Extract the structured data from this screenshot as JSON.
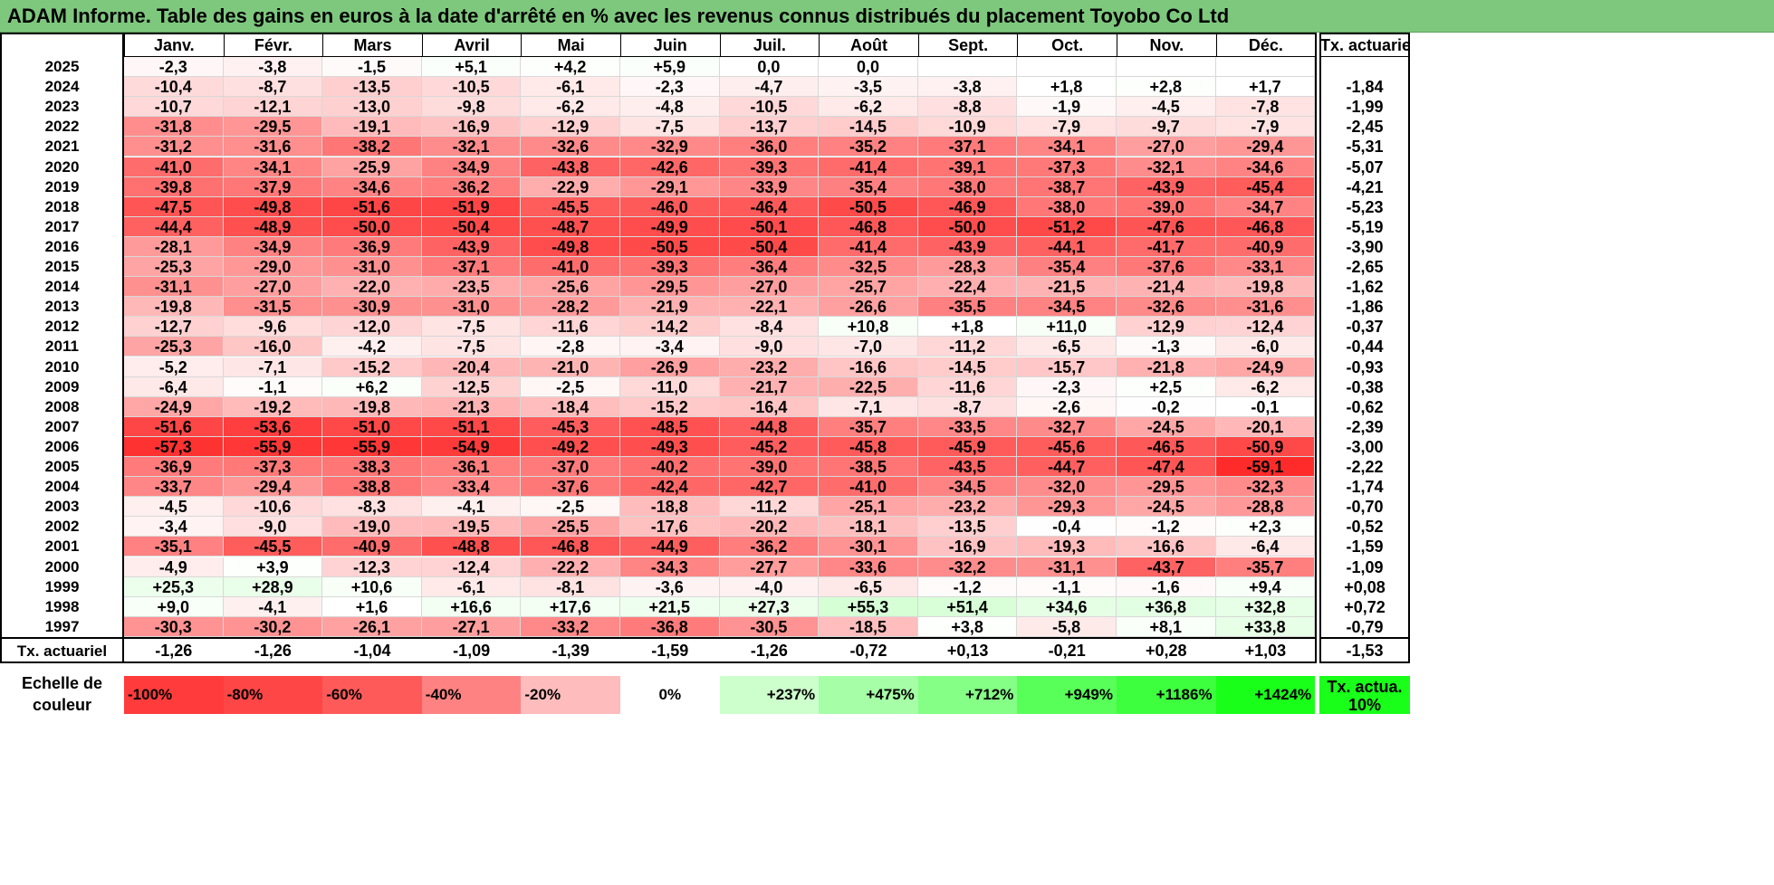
{
  "title": "ADAM Informe. Table des gains en euros à la date d'arrêté en % avec les revenus connus distribués du placement Toyobo Co Ltd",
  "chart_data": {
    "type": "heatmap",
    "title": "ADAM Informe. Table des gains en euros à la date d'arrêté en % avec les revenus connus distribués du placement Toyobo Co Ltd",
    "columns": [
      "Janv.",
      "Févr.",
      "Mars",
      "Avril",
      "Mai",
      "Juin",
      "Juil.",
      "Août",
      "Sept.",
      "Oct.",
      "Nov.",
      "Déc."
    ],
    "annual_header": "Tx. actuariel",
    "rows": [
      {
        "year": "2025",
        "values": [
          "-2,3",
          "-3,8",
          "-1,5",
          "+5,1",
          "+4,2",
          "+5,9",
          "0,0",
          "0,0",
          "",
          "",
          "",
          ""
        ],
        "annual": ""
      },
      {
        "year": "2024",
        "values": [
          "-10,4",
          "-8,7",
          "-13,5",
          "-10,5",
          "-6,1",
          "-2,3",
          "-4,7",
          "-3,5",
          "-3,8",
          "+1,8",
          "+2,8",
          "+1,7"
        ],
        "annual": "-1,84"
      },
      {
        "year": "2023",
        "values": [
          "-10,7",
          "-12,1",
          "-13,0",
          "-9,8",
          "-6,2",
          "-4,8",
          "-10,5",
          "-6,2",
          "-8,8",
          "-1,9",
          "-4,5",
          "-7,8"
        ],
        "annual": "-1,99"
      },
      {
        "year": "2022",
        "values": [
          "-31,8",
          "-29,5",
          "-19,1",
          "-16,9",
          "-12,9",
          "-7,5",
          "-13,7",
          "-14,5",
          "-10,9",
          "-7,9",
          "-9,7",
          "-7,9"
        ],
        "annual": "-2,45"
      },
      {
        "year": "2021",
        "values": [
          "-31,2",
          "-31,6",
          "-38,2",
          "-32,1",
          "-32,6",
          "-32,9",
          "-36,0",
          "-35,2",
          "-37,1",
          "-34,1",
          "-27,0",
          "-29,4"
        ],
        "annual": "-5,31"
      },
      {
        "year": "2020",
        "values": [
          "-41,0",
          "-34,1",
          "-25,9",
          "-34,9",
          "-43,8",
          "-42,6",
          "-39,3",
          "-41,4",
          "-39,1",
          "-37,3",
          "-32,1",
          "-34,6"
        ],
        "annual": "-5,07"
      },
      {
        "year": "2019",
        "values": [
          "-39,8",
          "-37,9",
          "-34,6",
          "-36,2",
          "-22,9",
          "-29,1",
          "-33,9",
          "-35,4",
          "-38,0",
          "-38,7",
          "-43,9",
          "-45,4"
        ],
        "annual": "-4,21"
      },
      {
        "year": "2018",
        "values": [
          "-47,5",
          "-49,8",
          "-51,6",
          "-51,9",
          "-45,5",
          "-46,0",
          "-46,4",
          "-50,5",
          "-46,9",
          "-38,0",
          "-39,0",
          "-34,7"
        ],
        "annual": "-5,23"
      },
      {
        "year": "2017",
        "values": [
          "-44,4",
          "-48,9",
          "-50,0",
          "-50,4",
          "-48,7",
          "-49,9",
          "-50,1",
          "-46,8",
          "-50,0",
          "-51,2",
          "-47,6",
          "-46,8"
        ],
        "annual": "-5,19"
      },
      {
        "year": "2016",
        "values": [
          "-28,1",
          "-34,9",
          "-36,9",
          "-43,9",
          "-49,8",
          "-50,5",
          "-50,4",
          "-41,4",
          "-43,9",
          "-44,1",
          "-41,7",
          "-40,9"
        ],
        "annual": "-3,90"
      },
      {
        "year": "2015",
        "values": [
          "-25,3",
          "-29,0",
          "-31,0",
          "-37,1",
          "-41,0",
          "-39,3",
          "-36,4",
          "-32,5",
          "-28,3",
          "-35,4",
          "-37,6",
          "-33,1"
        ],
        "annual": "-2,65"
      },
      {
        "year": "2014",
        "values": [
          "-31,1",
          "-27,0",
          "-22,0",
          "-23,5",
          "-25,6",
          "-29,5",
          "-27,0",
          "-25,7",
          "-22,4",
          "-21,5",
          "-21,4",
          "-19,8"
        ],
        "annual": "-1,62"
      },
      {
        "year": "2013",
        "values": [
          "-19,8",
          "-31,5",
          "-30,9",
          "-31,0",
          "-28,2",
          "-21,9",
          "-22,1",
          "-26,6",
          "-35,5",
          "-34,5",
          "-32,6",
          "-31,6"
        ],
        "annual": "-1,86"
      },
      {
        "year": "2012",
        "values": [
          "-12,7",
          "-9,6",
          "-12,0",
          "-7,5",
          "-11,6",
          "-14,2",
          "-8,4",
          "+10,8",
          "+1,8",
          "+11,0",
          "-12,9",
          "-12,4"
        ],
        "annual": "-0,37"
      },
      {
        "year": "2011",
        "values": [
          "-25,3",
          "-16,0",
          "-4,2",
          "-7,5",
          "-2,8",
          "-3,4",
          "-9,0",
          "-7,0",
          "-11,2",
          "-6,5",
          "-1,3",
          "-6,0"
        ],
        "annual": "-0,44"
      },
      {
        "year": "2010",
        "values": [
          "-5,2",
          "-7,1",
          "-15,2",
          "-20,4",
          "-21,0",
          "-26,9",
          "-23,2",
          "-16,6",
          "-14,5",
          "-15,7",
          "-21,8",
          "-24,9"
        ],
        "annual": "-0,93"
      },
      {
        "year": "2009",
        "values": [
          "-6,4",
          "-1,1",
          "+6,2",
          "-12,5",
          "-2,5",
          "-11,0",
          "-21,7",
          "-22,5",
          "-11,6",
          "-2,3",
          "+2,5",
          "-6,2"
        ],
        "annual": "-0,38"
      },
      {
        "year": "2008",
        "values": [
          "-24,9",
          "-19,2",
          "-19,8",
          "-21,3",
          "-18,4",
          "-15,2",
          "-16,4",
          "-7,1",
          "-8,7",
          "-2,6",
          "-0,2",
          "-0,1"
        ],
        "annual": "-0,62"
      },
      {
        "year": "2007",
        "values": [
          "-51,6",
          "-53,6",
          "-51,0",
          "-51,1",
          "-45,3",
          "-48,5",
          "-44,8",
          "-35,7",
          "-33,5",
          "-32,7",
          "-24,5",
          "-20,1"
        ],
        "annual": "-2,39"
      },
      {
        "year": "2006",
        "values": [
          "-57,3",
          "-55,9",
          "-55,9",
          "-54,9",
          "-49,2",
          "-49,3",
          "-45,2",
          "-45,8",
          "-45,9",
          "-45,6",
          "-46,5",
          "-50,9"
        ],
        "annual": "-3,00"
      },
      {
        "year": "2005",
        "values": [
          "-36,9",
          "-37,3",
          "-38,3",
          "-36,1",
          "-37,0",
          "-40,2",
          "-39,0",
          "-38,5",
          "-43,5",
          "-44,7",
          "-47,4",
          "-59,1"
        ],
        "annual": "-2,22"
      },
      {
        "year": "2004",
        "values": [
          "-33,7",
          "-29,4",
          "-38,8",
          "-33,4",
          "-37,6",
          "-42,4",
          "-42,7",
          "-41,0",
          "-34,5",
          "-32,0",
          "-29,5",
          "-32,3"
        ],
        "annual": "-1,74"
      },
      {
        "year": "2003",
        "values": [
          "-4,5",
          "-10,6",
          "-8,3",
          "-4,1",
          "-2,5",
          "-18,8",
          "-11,2",
          "-25,1",
          "-23,2",
          "-29,3",
          "-24,5",
          "-28,8"
        ],
        "annual": "-0,70"
      },
      {
        "year": "2002",
        "values": [
          "-3,4",
          "-9,0",
          "-19,0",
          "-19,5",
          "-25,5",
          "-17,6",
          "-20,2",
          "-18,1",
          "-13,5",
          "-0,4",
          "-1,2",
          "+2,3"
        ],
        "annual": "-0,52"
      },
      {
        "year": "2001",
        "values": [
          "-35,1",
          "-45,5",
          "-40,9",
          "-48,8",
          "-46,8",
          "-44,9",
          "-36,2",
          "-30,1",
          "-16,9",
          "-19,3",
          "-16,6",
          "-6,4"
        ],
        "annual": "-1,59"
      },
      {
        "year": "2000",
        "values": [
          "-4,9",
          "+3,9",
          "-12,3",
          "-12,4",
          "-22,2",
          "-34,3",
          "-27,7",
          "-33,6",
          "-32,2",
          "-31,1",
          "-43,7",
          "-35,7"
        ],
        "annual": "-1,09"
      },
      {
        "year": "1999",
        "values": [
          "+25,3",
          "+28,9",
          "+10,6",
          "-6,1",
          "-8,1",
          "-3,6",
          "-4,0",
          "-6,5",
          "-1,2",
          "-1,1",
          "-1,6",
          "+9,4"
        ],
        "annual": "+0,08"
      },
      {
        "year": "1998",
        "values": [
          "+9,0",
          "-4,1",
          "+1,6",
          "+16,6",
          "+17,6",
          "+21,5",
          "+27,3",
          "+55,3",
          "+51,4",
          "+34,6",
          "+36,8",
          "+32,8"
        ],
        "annual": "+0,72"
      },
      {
        "year": "1997",
        "values": [
          "-30,3",
          "-30,2",
          "-26,1",
          "-27,1",
          "-33,2",
          "-36,8",
          "-30,5",
          "-18,5",
          "+3,8",
          "-5,8",
          "+8,1",
          "+33,8"
        ],
        "annual": "-0,79"
      }
    ],
    "footer": {
      "label": "Tx. actuariel",
      "values": [
        "-1,26",
        "-1,26",
        "-1,04",
        "-1,09",
        "-1,39",
        "-1,59",
        "-1,26",
        "-0,72",
        "+0,13",
        "-0,21",
        "+0,28",
        "+1,03"
      ],
      "annual": "-1,53"
    },
    "color_scale": {
      "label": "Echelle de couleur",
      "stops": [
        {
          "label": "-100%",
          "color": "#ff3b3b"
        },
        {
          "label": "-80%",
          "color": "#ff4646"
        },
        {
          "label": "-60%",
          "color": "#ff5a5a"
        },
        {
          "label": "-40%",
          "color": "#ff8282"
        },
        {
          "label": "-20%",
          "color": "#ffbcbc"
        },
        {
          "label": "0%",
          "color": "#ffffff"
        },
        {
          "label": "+237%",
          "color": "#ccffcc"
        },
        {
          "label": "+475%",
          "color": "#a6ffa6"
        },
        {
          "label": "+712%",
          "color": "#85ff85"
        },
        {
          "label": "+949%",
          "color": "#59ff59"
        },
        {
          "label": "+1186%",
          "color": "#3dff3d"
        },
        {
          "label": "+1424%",
          "color": "#19ff19"
        }
      ],
      "annual_label": "Tx. actua. 10%",
      "annual_color": "#19ff19"
    }
  }
}
